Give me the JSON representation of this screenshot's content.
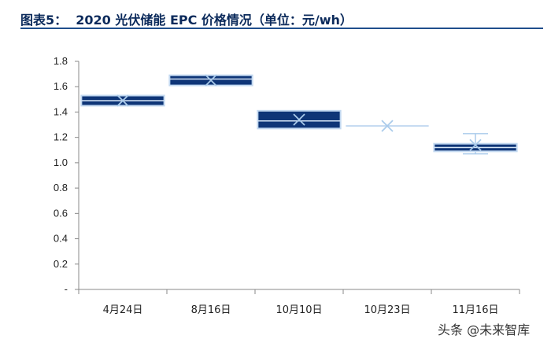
{
  "title": "图表5：  2020 光伏储能 EPC 价格情况（单位：元/wh）",
  "watermark": "头条 @未来智库",
  "chart_data": {
    "type": "boxplot",
    "title": "图表5：  2020 光伏储能 EPC 价格情况（单位：元/wh）",
    "xlabel": "",
    "ylabel": "",
    "ylim": [
      0,
      1.8
    ],
    "yticks": [
      "-",
      "0.2",
      "0.4",
      "0.6",
      "0.8",
      "1.0",
      "1.2",
      "1.4",
      "1.6",
      "1.8"
    ],
    "ytick_values": [
      0,
      0.2,
      0.4,
      0.6,
      0.8,
      1.0,
      1.2,
      1.4,
      1.6,
      1.8
    ],
    "categories": [
      "4月24日",
      "8月16日",
      "10月10日",
      "10月23日",
      "11月16日"
    ],
    "boxes": [
      {
        "q1": 1.45,
        "q3": 1.53,
        "median": 1.49,
        "mean": 1.49,
        "min": 1.45,
        "max": 1.53
      },
      {
        "q1": 1.61,
        "q3": 1.69,
        "median": 1.66,
        "mean": 1.65,
        "min": 1.61,
        "max": 1.69
      },
      {
        "q1": 1.27,
        "q3": 1.41,
        "median": 1.33,
        "mean": 1.34,
        "min": 1.27,
        "max": 1.41
      },
      {
        "q1": 1.29,
        "q3": 1.29,
        "median": 1.29,
        "mean": 1.29,
        "min": 1.29,
        "max": 1.29
      },
      {
        "q1": 1.09,
        "q3": 1.15,
        "median": 1.12,
        "mean": 1.14,
        "min": 1.07,
        "max": 1.23
      }
    ],
    "colors": {
      "box": "#0e3577",
      "box_light": "#c2d8f0",
      "mean_marker": "#aacbeb",
      "axis": "#888888"
    },
    "grid": false,
    "legend": "none"
  }
}
